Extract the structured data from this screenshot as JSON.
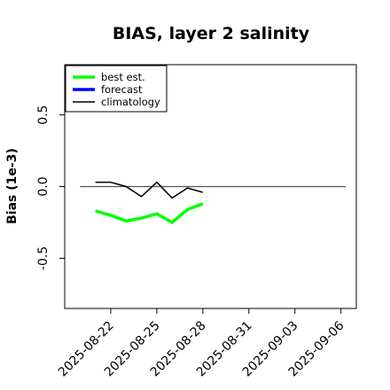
{
  "chart_data": {
    "type": "line",
    "title": "BIAS, layer 2 salinity",
    "ylabel": "Bias (1e-3)",
    "xlabel": "",
    "ylim": [
      -0.85,
      0.85
    ],
    "y_ticks": [
      "-0.5",
      "0.0",
      "0.5"
    ],
    "y_tick_values": [
      -0.5,
      0.0,
      0.5
    ],
    "x_range": [
      "2025-08-19",
      "2025-09-07"
    ],
    "x_ticks": [
      "2025-08-22",
      "2025-08-25",
      "2025-08-28",
      "2025-08-31",
      "2025-09-03",
      "2025-09-06"
    ],
    "highlight_tick": "2025-08-28",
    "highlight_color": "#228B22",
    "reference_line": 0.0,
    "legend_position": "top-left",
    "series": [
      {
        "name": "best est.",
        "color": "#00ff00",
        "x": [
          "2025-08-21",
          "2025-08-22",
          "2025-08-23",
          "2025-08-24",
          "2025-08-25",
          "2025-08-26",
          "2025-08-27",
          "2025-08-28"
        ],
        "values": [
          -0.17,
          -0.2,
          -0.24,
          -0.22,
          -0.19,
          -0.25,
          -0.16,
          -0.12
        ]
      },
      {
        "name": "forecast",
        "color": "#0000ff",
        "x": [],
        "values": []
      },
      {
        "name": "climatology",
        "color": "#000000",
        "x": [
          "2025-08-21",
          "2025-08-22",
          "2025-08-23",
          "2025-08-24",
          "2025-08-25",
          "2025-08-26",
          "2025-08-27",
          "2025-08-28"
        ],
        "values": [
          0.03,
          0.03,
          0.0,
          -0.07,
          0.03,
          -0.08,
          -0.01,
          -0.04
        ]
      }
    ]
  }
}
